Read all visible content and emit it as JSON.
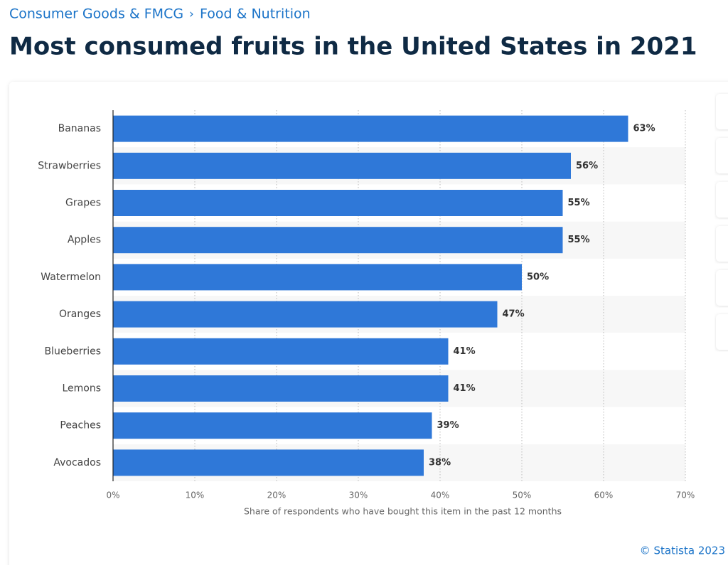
{
  "breadcrumb": [
    "Consumer Goods & FMCG",
    "Food & Nutrition"
  ],
  "breadcrumb_separator": "›",
  "chart_data": {
    "type": "barh",
    "title": "Most consumed fruits in the United States in 2021",
    "categories": [
      "Bananas",
      "Strawberries",
      "Grapes",
      "Apples",
      "Watermelon",
      "Oranges",
      "Blueberries",
      "Lemons",
      "Peaches",
      "Avocados"
    ],
    "values": [
      63,
      56,
      55,
      55,
      50,
      47,
      41,
      41,
      39,
      38
    ],
    "value_labels": [
      "63%",
      "56%",
      "55%",
      "55%",
      "50%",
      "47%",
      "41%",
      "41%",
      "39%",
      "38%"
    ],
    "color": "#2f78d8",
    "xlim": [
      0,
      70
    ],
    "xticks": [
      {
        "value": 0,
        "label": "0%"
      },
      {
        "value": 10,
        "label": "10%"
      },
      {
        "value": 20,
        "label": "20%"
      },
      {
        "value": 30,
        "label": "30%"
      },
      {
        "value": 40,
        "label": "40%"
      },
      {
        "value": 50,
        "label": "50%"
      },
      {
        "value": 60,
        "label": "60%"
      },
      {
        "value": 70,
        "label": "70%"
      }
    ],
    "x_label": "Share of respondents who have bought this item in the past 12 months",
    "grid": true
  },
  "credit": "© Statista 2023"
}
